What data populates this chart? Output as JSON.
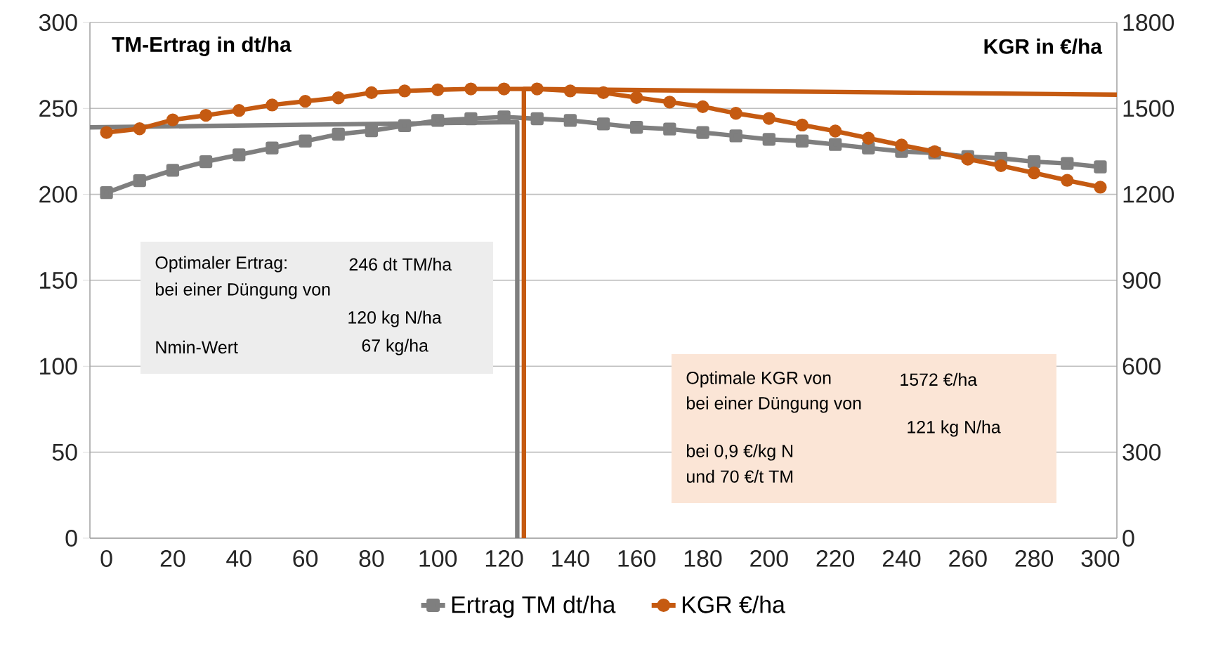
{
  "chart_data": {
    "type": "line",
    "ylabel": "TM-Ertrag in dt/ha",
    "y2label": "KGR in €/ha",
    "x": [
      0,
      10,
      20,
      30,
      40,
      50,
      60,
      70,
      80,
      90,
      100,
      110,
      120,
      130,
      140,
      150,
      160,
      170,
      180,
      190,
      200,
      210,
      220,
      230,
      240,
      250,
      260,
      270,
      280,
      290,
      300
    ],
    "series": [
      {
        "name": "Ertrag TM dt/ha",
        "color": "#7f7f7f",
        "marker": "square",
        "values": [
          201,
          208,
          214,
          219,
          223,
          227,
          231,
          235,
          237,
          240,
          243,
          244,
          245,
          244,
          243,
          241,
          239,
          238,
          236,
          234,
          232,
          231,
          229,
          227,
          225,
          224,
          222,
          221,
          219,
          218,
          216
        ]
      },
      {
        "name": "KGR €/ha",
        "color": "#c55a11",
        "marker": "circle",
        "axis": "y2",
        "values": [
          1416,
          1429,
          1460,
          1476,
          1493,
          1512,
          1525,
          1537,
          1555,
          1561,
          1565,
          1568,
          1568,
          1568,
          1561,
          1555,
          1538,
          1522,
          1506,
          1483,
          1465,
          1442,
          1421,
          1396,
          1372,
          1349,
          1323,
          1300,
          1275,
          1249,
          1225
        ]
      },
      {
        "color": "#7f7f7f",
        "marker": "none",
        "x": [
          -5,
          124,
          124
        ],
        "values": [
          239,
          242,
          0
        ]
      },
      {
        "color": "#c55a11",
        "marker": "none",
        "axis": "y2",
        "x": [
          126,
          126,
          305
        ],
        "values": [
          0,
          1568,
          1548
        ]
      }
    ],
    "xlim": [
      -5,
      305
    ],
    "xticks": [
      0,
      20,
      40,
      60,
      80,
      100,
      120,
      140,
      160,
      180,
      200,
      220,
      240,
      260,
      280,
      300
    ],
    "ylim": [
      0,
      300
    ],
    "yticks": [
      0,
      50,
      100,
      150,
      200,
      250,
      300
    ],
    "y2lim": [
      0,
      1800
    ],
    "y2ticks": [
      0,
      300,
      600,
      900,
      1200,
      1500,
      1800
    ],
    "grid": "y",
    "legend": "bottom",
    "line_style": "solid",
    "annotations": [
      "Optimaler Ertrag:",
      "246 dt TM/ha",
      "bei einer Düngung von",
      "120 kg N/ha",
      "Nmin-Wert",
      "67 kg/ha",
      "Optimale KGR von",
      "1572 €/ha",
      "bei einer Düngung von",
      "121 kg N/ha",
      "bei 0,9 €/kg N",
      "und 70 €/t TM"
    ]
  }
}
